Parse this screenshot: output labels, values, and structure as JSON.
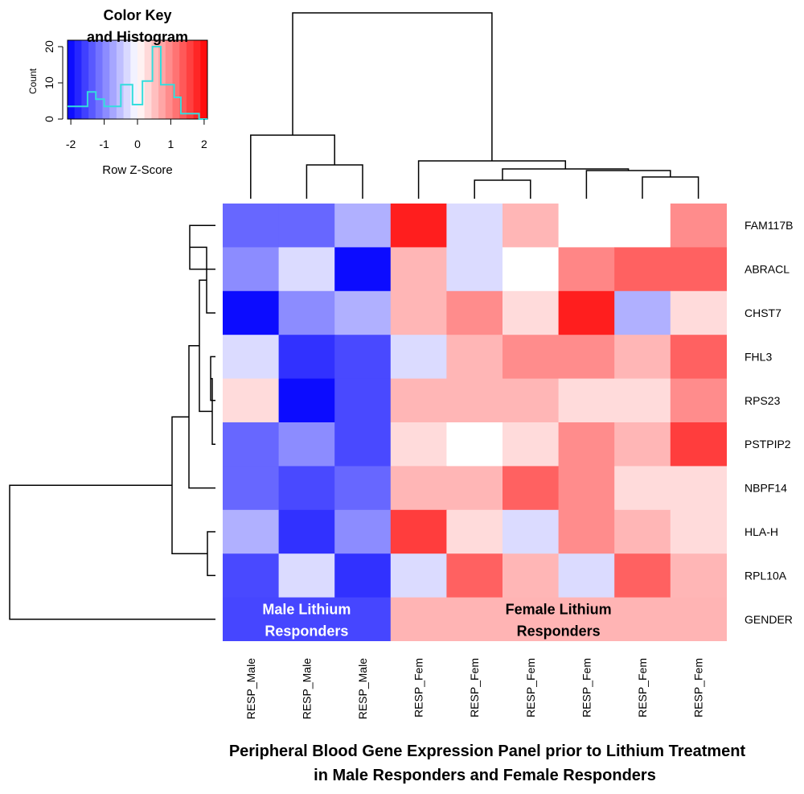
{
  "chart_data": {
    "type": "heatmap",
    "title_lines": [
      "Peripheral Blood Gene Expression Panel prior to Lithium Treatment",
      "in Male Responders and Female Responders"
    ],
    "columns": [
      "RESP_Male",
      "RESP_Male",
      "RESP_Male",
      "RESP_Fem",
      "RESP_Fem",
      "RESP_Fem",
      "RESP_Fem",
      "RESP_Fem",
      "RESP_Fem"
    ],
    "rows": [
      "FAM117B",
      "ABRACL",
      "CHST7",
      "FHL3",
      "RPS23",
      "PSTPIP2",
      "NBPF14",
      "HLA-H",
      "RPL10A"
    ],
    "values": [
      [
        -1.25,
        -1.25,
        -0.65,
        1.85,
        -0.3,
        0.6,
        0.0,
        0.0,
        0.95
      ],
      [
        -0.95,
        -0.3,
        -2.0,
        0.6,
        -0.3,
        0.0,
        1.0,
        1.3,
        1.3
      ],
      [
        -2.0,
        -0.95,
        -0.65,
        0.6,
        0.95,
        0.3,
        1.85,
        -0.65,
        0.3
      ],
      [
        -0.3,
        -1.7,
        -1.5,
        -0.3,
        0.6,
        0.95,
        0.95,
        0.6,
        1.3
      ],
      [
        0.3,
        -2.0,
        -1.5,
        0.6,
        0.6,
        0.6,
        0.3,
        0.3,
        0.95
      ],
      [
        -1.25,
        -0.95,
        -1.5,
        0.3,
        0.0,
        0.3,
        0.95,
        0.6,
        1.6
      ],
      [
        -1.25,
        -1.5,
        -1.25,
        0.6,
        0.6,
        1.3,
        0.95,
        0.3,
        0.3
      ],
      [
        -0.65,
        -1.7,
        -0.95,
        1.6,
        0.3,
        -0.3,
        0.95,
        0.6,
        0.3
      ],
      [
        -1.5,
        -0.3,
        -1.7,
        -0.3,
        1.3,
        0.6,
        -0.3,
        1.3,
        0.6
      ]
    ],
    "annotation_row": {
      "label": "GENDER",
      "groups": [
        {
          "name_lines": [
            "Male Lithium",
            "Responders"
          ],
          "span": 3,
          "color": "#4646ff",
          "text_color": "#ffffff"
        },
        {
          "name_lines": [
            "Female Lithium",
            "Responders"
          ],
          "span": 6,
          "color": "#ffb4b4",
          "text_color": "#000000"
        }
      ]
    },
    "color_scale": {
      "low": "#0000ff",
      "mid": "#ffffff",
      "high": "#ff0000",
      "range": [
        -2.1,
        2.1
      ]
    },
    "color_key": {
      "title_lines": [
        "Color Key",
        "and Histogram"
      ],
      "xlabel": "Row Z-Score",
      "ylabel": "Count",
      "x_ticks": [
        "-2",
        "-1",
        "0",
        "1",
        "2"
      ],
      "y_ticks": [
        "0",
        "10",
        "20"
      ],
      "ylim": [
        0,
        20
      ],
      "histogram_bins": [
        {
          "from": -2.1,
          "to": -1.5,
          "count": 3.5
        },
        {
          "from": -1.5,
          "to": -1.25,
          "count": 7.5
        },
        {
          "from": -1.25,
          "to": -1.0,
          "count": 5.5
        },
        {
          "from": -1.0,
          "to": -0.5,
          "count": 3.5
        },
        {
          "from": -0.5,
          "to": -0.15,
          "count": 9.5
        },
        {
          "from": -0.15,
          "to": 0.15,
          "count": 4.0
        },
        {
          "from": 0.15,
          "to": 0.45,
          "count": 10.5
        },
        {
          "from": 0.45,
          "to": 0.7,
          "count": 20.0
        },
        {
          "from": 0.7,
          "to": 1.1,
          "count": 9.5
        },
        {
          "from": 1.1,
          "to": 1.3,
          "count": 6.0
        },
        {
          "from": 1.3,
          "to": 1.85,
          "count": 1.5
        },
        {
          "from": 1.85,
          "to": 2.1,
          "count": 0.0
        }
      ],
      "histogram_color": "#33dddd"
    },
    "dendrogram_color": "#000000"
  }
}
